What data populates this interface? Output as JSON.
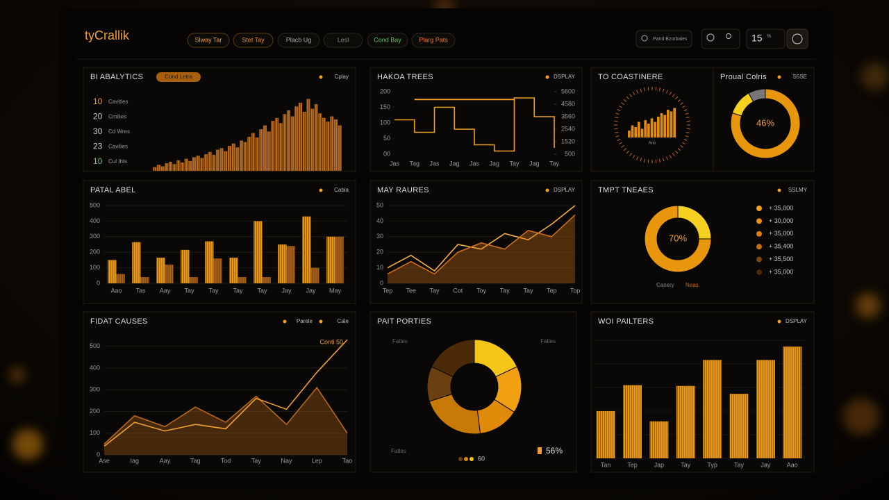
{
  "header": {
    "logo": "tyCrallik",
    "nav": [
      {
        "label": "Slway Tar",
        "color": "#f0a030"
      },
      {
        "label": "Stet Tay",
        "color": "#f08a20"
      },
      {
        "label": "Placb Ug",
        "color": "#aaaaaa"
      },
      {
        "label": "Lesl",
        "color": "#888888"
      },
      {
        "label": "Cond Bay",
        "color": "#5fc060"
      },
      {
        "label": "Plarg Pats",
        "color": "#f07a30"
      }
    ],
    "search": "Pand Bzorbaies",
    "counter": "15",
    "counter_unit": "%"
  },
  "panels": [
    {
      "title": "BI ABALYTICS",
      "tag": "Cond Letra",
      "badges": [
        "Cplay"
      ],
      "list": [
        {
          "value": 10,
          "label": "Cavitles",
          "color": "#f0a030"
        },
        {
          "value": 20,
          "label": "Cmilies",
          "color": "#cccccc"
        },
        {
          "value": 30,
          "label": "Cd Wres",
          "color": "#cccccc"
        },
        {
          "value": 23,
          "label": "Cavilies",
          "color": "#cccccc"
        },
        {
          "value": 10,
          "label": "Cul Ihts",
          "color": "#70c070"
        }
      ],
      "chart": {
        "type": "bar",
        "color": "#b86a1a",
        "ylim": [
          0,
          100
        ],
        "values": [
          5,
          8,
          6,
          10,
          12,
          9,
          14,
          11,
          16,
          13,
          18,
          20,
          17,
          22,
          25,
          21,
          28,
          30,
          26,
          33,
          36,
          31,
          40,
          38,
          45,
          50,
          44,
          55,
          60,
          52,
          66,
          70,
          63,
          75,
          80,
          72,
          85,
          90,
          78,
          95,
          82,
          88,
          76,
          70,
          65,
          72,
          68,
          60
        ]
      }
    },
    {
      "title": "HAKOA TREES",
      "badges": [
        "DSPLAY"
      ],
      "chart": {
        "type": "line",
        "step": true,
        "categories": [
          "Jas",
          "Tag",
          "Jas",
          "Jag",
          "Jas",
          "Jag",
          "Tay",
          "Jag",
          "Tay"
        ],
        "ylim": [
          0,
          200
        ],
        "yticks": [
          {
            "value": 0,
            "label": "00"
          },
          50,
          100,
          150,
          200
        ],
        "y2lim": [
          500,
          5600
        ],
        "y2ticks": [
          500,
          1520,
          2540,
          3560,
          4580,
          5600
        ],
        "reference": 175,
        "series": [
          {
            "color": "#f0a020",
            "values": [
              110,
              70,
              150,
              80,
              30,
              10,
              180,
              120,
              20
            ]
          }
        ]
      }
    },
    {
      "title": "TO COASTINERE",
      "chart": {
        "type": "gauge",
        "label": "Ano",
        "color": "#e08a10",
        "ylim": [
          0,
          100
        ],
        "values": [
          20,
          35,
          30,
          45,
          25,
          50,
          40,
          55,
          45,
          60,
          70,
          65,
          80,
          75,
          85
        ]
      }
    },
    {
      "title": "Proual Colris",
      "badges": [
        "S5SE"
      ],
      "chart": {
        "type": "donut",
        "center": "46%",
        "segments": [
          {
            "value": 80,
            "color": "#e8960c"
          },
          {
            "value": 12,
            "color": "#f5d020"
          },
          {
            "value": 8,
            "color": "#777777"
          }
        ]
      }
    },
    {
      "title": "PATAL ABEL",
      "badges": [
        "Cabia"
      ],
      "chart": {
        "type": "bar",
        "grid": true,
        "categories": [
          "Aao",
          "Tas",
          "Aay",
          "Tay",
          "Tay",
          "Tay",
          "Tay",
          "Jay",
          "Jay",
          "May"
        ],
        "ylim": [
          0,
          500
        ],
        "yticks": [
          0,
          100,
          200,
          300,
          400,
          500
        ],
        "series": [
          {
            "color": "#e8960c",
            "values": [
              150,
              265,
              165,
              215,
              270,
              165,
              400,
              250,
              430,
              300
            ]
          },
          {
            "color": "#a86010",
            "values": [
              60,
              40,
              120,
              40,
              160,
              40,
              40,
              240,
              100,
              300
            ]
          }
        ]
      }
    },
    {
      "title": "MAY RAURES",
      "badges": [
        "DSPLAY"
      ],
      "chart": {
        "type": "line",
        "grid": true,
        "categories": [
          "Tep",
          "Tee",
          "Tay",
          "Cot",
          "Toy",
          "Tay",
          "Tay",
          "Tep",
          "Top"
        ],
        "ylim": [
          0,
          50
        ],
        "yticks": [
          0,
          10,
          20,
          30,
          40,
          50
        ],
        "series": [
          {
            "color": "#f5b040",
            "values": [
              10,
              18,
              8,
              25,
              22,
              32,
              28,
              38,
              50
            ]
          },
          {
            "color": "#d07018",
            "area": true,
            "values": [
              6,
              14,
              6,
              20,
              26,
              22,
              34,
              30,
              44
            ]
          }
        ]
      }
    },
    {
      "title": "TMPT TNEAES",
      "badges": [
        "SSLMY"
      ],
      "chart": {
        "type": "donut",
        "center": "70%",
        "segments": [
          {
            "value": 25,
            "color": "#f5d020"
          },
          {
            "value": 75,
            "color": "#e8960c"
          }
        ],
        "entries": [
          {
            "label": "+ 35,000",
            "color": "#f0a020"
          },
          {
            "label": "+ 30,000",
            "color": "#e89018"
          },
          {
            "label": "+ 35,000",
            "color": "#d88010"
          },
          {
            "label": "+ 35,400",
            "color": "#c87010"
          },
          {
            "label": "+ 35,500",
            "color": "#7a4510"
          },
          {
            "label": "+ 35,000",
            "color": "#4a2a08"
          }
        ],
        "legend": [
          {
            "label": "Canery",
            "color": "#888888"
          },
          {
            "label": "Neas",
            "color": "#c86a10"
          }
        ]
      }
    },
    {
      "title": "FIDAT CAUSES",
      "badges": [
        "Parele",
        "Cale"
      ],
      "chart": {
        "type": "line",
        "grid": true,
        "annotation": "Conti 50",
        "categories": [
          "Ase",
          "Iag",
          "Aay",
          "Tag",
          "Tod",
          "Tay",
          "Nay",
          "Lep",
          "Tao"
        ],
        "ylim": [
          0,
          550
        ],
        "yticks": [
          0,
          100,
          200,
          300,
          400,
          500
        ],
        "series": [
          {
            "color": "#b8681a",
            "area": true,
            "values": [
              50,
              180,
              130,
              220,
              150,
              270,
              140,
              310,
              100
            ]
          },
          {
            "color": "#f0a030",
            "values": [
              40,
              150,
              110,
              140,
              120,
              260,
              210,
              380,
              530
            ]
          }
        ]
      }
    },
    {
      "title": "PAIT PORTIES",
      "chart": {
        "type": "donut",
        "center": "",
        "labels": [
          "Fatles",
          "Fatles",
          "Fatles"
        ],
        "value_label": "56%",
        "legend_text": "60",
        "segments": [
          {
            "value": 18,
            "color": "#f5c518"
          },
          {
            "value": 16,
            "color": "#f0a010"
          },
          {
            "value": 14,
            "color": "#e08a0a"
          },
          {
            "value": 22,
            "color": "#c77a08"
          },
          {
            "value": 12,
            "color": "#6a4010"
          },
          {
            "value": 18,
            "color": "#4a2a08"
          }
        ]
      }
    },
    {
      "title": "WOI PAILTERS",
      "badges": [
        "DSPLAY"
      ],
      "chart": {
        "type": "bar",
        "grid": true,
        "color": "#e8960c",
        "categories": [
          "Tan",
          "Tep",
          "Jap",
          "Tay",
          "Typ",
          "Tay",
          "Jay",
          "Aao"
        ],
        "ylim": [
          0,
          150
        ],
        "values": [
          60,
          93,
          47,
          92,
          125,
          82,
          125,
          142
        ]
      }
    }
  ]
}
